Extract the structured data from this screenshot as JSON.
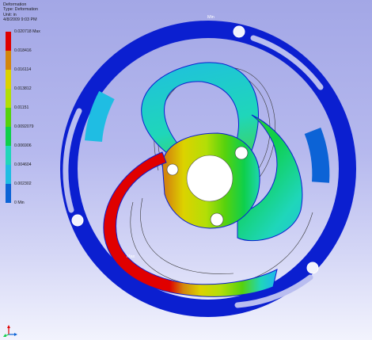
{
  "header": {
    "title": "Deformation",
    "type": "Type: Deformation",
    "unit": "Unit: in",
    "date": "4/8/2009 9:03 PM"
  },
  "legend": [
    {
      "label": "0.020718 Max",
      "color": "#e00000"
    },
    {
      "label": "0.018416",
      "color": "#d4860c"
    },
    {
      "label": "0.016114",
      "color": "#dcd200"
    },
    {
      "label": "0.013812",
      "color": "#b3de07"
    },
    {
      "label": "0.01151",
      "color": "#56d20d"
    },
    {
      "label": "0.0092079",
      "color": "#0ecf4b"
    },
    {
      "label": "0.006906",
      "color": "#1fd6ba"
    },
    {
      "label": "0.004604",
      "color": "#1fbde3"
    },
    {
      "label": "0.002302",
      "color": "#0c63d6"
    },
    {
      "label": "0 Min",
      "color": "#0b1fd0"
    }
  ],
  "markers": {
    "min": "Min",
    "max": "Max"
  },
  "icons": {
    "triad": "axis-triad-icon"
  }
}
